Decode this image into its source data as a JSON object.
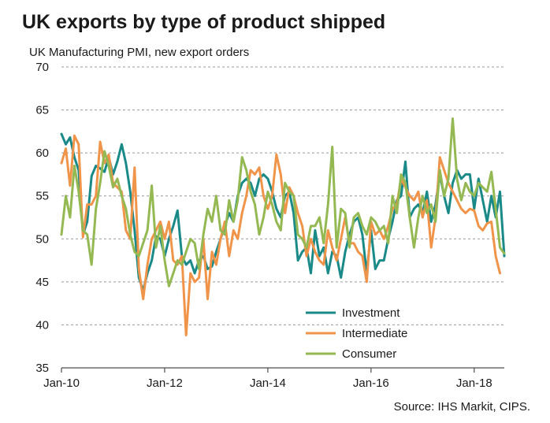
{
  "title": "UK exports by type of product shipped",
  "subtitle": "UK Manufacturing PMI, new export orders",
  "source": "Source: IHS Markit, CIPS.",
  "colors": {
    "Investment": "#1a8a88",
    "Intermediate": "#f0944a",
    "Consumer": "#94b952",
    "grid": "#9a9a9a",
    "axis": "#4d4d4d"
  },
  "chart_data": {
    "type": "line",
    "ylim": [
      35,
      70
    ],
    "yticks": [
      35,
      40,
      45,
      50,
      55,
      60,
      65,
      70
    ],
    "xlim": [
      "2010-01",
      "2018-08"
    ],
    "xticks": [
      {
        "label": "Jan-10",
        "x": "2010-01"
      },
      {
        "label": "Jan-12",
        "x": "2012-01"
      },
      {
        "label": "Jan-14",
        "x": "2014-01"
      },
      {
        "label": "Jan-16",
        "x": "2016-01"
      },
      {
        "label": "Jan-18",
        "x": "2018-01"
      }
    ],
    "grid": "horizontal dashed",
    "legend": "bottom-right",
    "x_start": "2010-01",
    "x_step": "1 month",
    "series": [
      {
        "name": "Investment",
        "values": [
          62.2,
          61.0,
          61.8,
          59.5,
          58.0,
          50.5,
          52.0,
          57.3,
          58.5,
          58.2,
          57.8,
          59.5,
          57.5,
          59.0,
          61.0,
          58.8,
          55.5,
          51.0,
          45.5,
          44.0,
          46.0,
          47.5,
          50.3,
          50.0,
          48.0,
          50.0,
          51.5,
          53.3,
          48.0,
          47.0,
          47.5,
          46.0,
          47.5,
          48.0,
          46.5,
          46.8,
          48.5,
          50.0,
          51.5,
          53.0,
          52.0,
          55.0,
          56.5,
          57.0,
          56.5,
          55.0,
          57.0,
          57.5,
          57.0,
          55.5,
          53.5,
          52.5,
          55.0,
          55.5,
          53.0,
          47.5,
          48.5,
          49.0,
          46.0,
          51.0,
          48.0,
          49.0,
          46.0,
          48.5,
          48.0,
          45.5,
          48.5,
          50.5,
          52.0,
          52.5,
          50.5,
          46.0,
          51.0,
          46.5,
          47.5,
          47.5,
          50.0,
          52.0,
          54.5,
          55.0,
          59.0,
          52.5,
          53.5,
          54.0,
          53.0,
          55.5,
          52.0,
          54.0,
          57.5,
          55.0,
          53.0,
          56.5,
          58.0,
          57.0,
          57.5,
          57.5,
          53.5,
          57.0,
          54.5,
          52.0,
          55.0,
          52.5,
          55.5,
          48.0
        ]
      },
      {
        "name": "Intermediate",
        "values": [
          58.8,
          60.5,
          56.2,
          62.0,
          61.0,
          50.2,
          54.0,
          54.0,
          55.0,
          61.3,
          58.8,
          59.8,
          56.5,
          56.0,
          55.5,
          51.0,
          50.0,
          58.3,
          46.5,
          43.0,
          47.0,
          50.0,
          51.0,
          52.0,
          50.0,
          52.0,
          47.5,
          47.0,
          48.0,
          38.8,
          46.0,
          45.0,
          45.5,
          50.0,
          43.0,
          48.5,
          47.0,
          50.0,
          52.0,
          48.0,
          51.0,
          50.0,
          53.0,
          55.0,
          58.0,
          57.5,
          58.3,
          55.0,
          53.5,
          55.0,
          59.8,
          57.5,
          53.0,
          56.0,
          55.0,
          53.0,
          51.5,
          48.0,
          50.0,
          48.5,
          47.5,
          47.0,
          51.0,
          49.0,
          47.5,
          50.0,
          52.5,
          49.5,
          49.5,
          48.5,
          48.0,
          45.0,
          52.0,
          50.5,
          51.0,
          50.0,
          51.5,
          53.5,
          54.0,
          57.0,
          56.0,
          55.0,
          54.5,
          55.5,
          52.5,
          54.5,
          49.0,
          52.5,
          59.5,
          58.0,
          56.5,
          55.5,
          54.5,
          53.5,
          53.0,
          53.5,
          53.3,
          51.5,
          51.0,
          51.8,
          52.0,
          48.0,
          46.0
        ]
      },
      {
        "name": "Consumer",
        "values": [
          50.5,
          55.0,
          52.5,
          58.5,
          55.5,
          51.0,
          50.5,
          47.0,
          53.5,
          56.5,
          60.2,
          58.5,
          56.0,
          57.0,
          55.0,
          53.5,
          50.5,
          48.5,
          48.0,
          49.5,
          51.0,
          56.2,
          49.0,
          51.5,
          47.5,
          44.5,
          46.0,
          47.5,
          47.0,
          48.5,
          50.0,
          49.5,
          46.5,
          50.5,
          53.5,
          52.0,
          55.0,
          51.0,
          50.5,
          54.5,
          52.0,
          54.5,
          59.5,
          58.0,
          55.5,
          54.0,
          50.5,
          52.5,
          55.5,
          54.0,
          52.0,
          51.0,
          56.5,
          55.5,
          55.0,
          50.5,
          50.0,
          49.0,
          51.5,
          51.5,
          52.5,
          49.5,
          54.0,
          60.7,
          49.0,
          53.5,
          53.0,
          49.0,
          52.5,
          53.0,
          51.5,
          50.5,
          52.5,
          52.0,
          51.0,
          51.5,
          49.5,
          55.0,
          53.0,
          57.5,
          56.5,
          52.5,
          49.0,
          52.5,
          55.0,
          53.0,
          54.0,
          52.0,
          58.0,
          55.0,
          57.0,
          64.0,
          57.0,
          54.5,
          56.5,
          55.5,
          55.0,
          56.5,
          56.0,
          55.5,
          57.8,
          53.5,
          49.0,
          48.3
        ]
      }
    ]
  }
}
